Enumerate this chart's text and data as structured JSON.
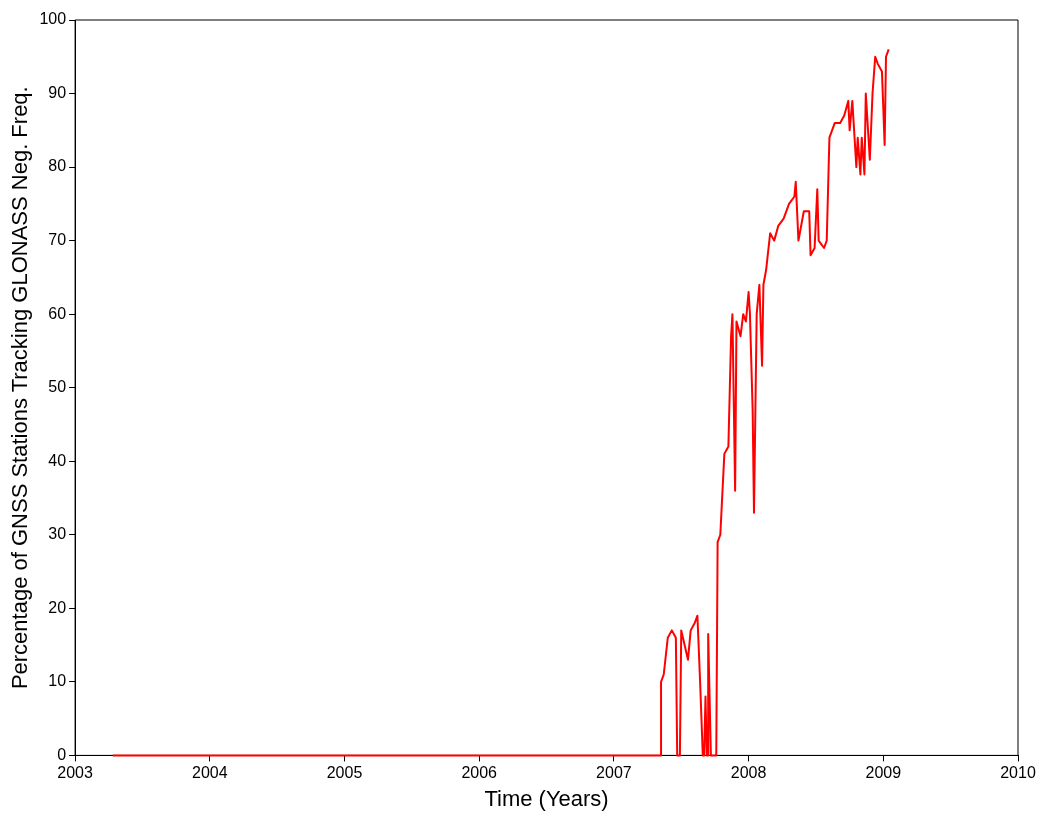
{
  "chart_data": {
    "type": "line",
    "xlabel": "Time (Years)",
    "ylabel": "Percentage of GNSS Stations Tracking GLONASS Neg. Freq.",
    "xlim": [
      2003,
      2010
    ],
    "xticks": [
      2003,
      2004,
      2005,
      2006,
      2007,
      2008,
      2009,
      2010
    ],
    "ylim": [
      0,
      100
    ],
    "yticks": [
      0,
      10,
      20,
      30,
      40,
      50,
      60,
      70,
      80,
      90,
      100
    ],
    "grid": false,
    "legend": false,
    "marker": "none",
    "line_style": "solid",
    "series": [
      {
        "color": "#ff0000",
        "x": [
          2003.28,
          2007.35,
          2007.35,
          2007.37,
          2007.4,
          2007.43,
          2007.46,
          2007.47,
          2007.49,
          2007.5,
          2007.55,
          2007.57,
          2007.6,
          2007.62,
          2007.64,
          2007.66,
          2007.67,
          2007.68,
          2007.69,
          2007.7,
          2007.7,
          2007.72,
          2007.76,
          2007.77,
          2007.79,
          2007.82,
          2007.85,
          2007.87,
          2007.88,
          2007.9,
          2007.91,
          2007.94,
          2007.96,
          2007.98,
          2008.0,
          2008.01,
          2008.03,
          2008.04,
          2008.06,
          2008.08,
          2008.1,
          2008.11,
          2008.13,
          2008.16,
          2008.19,
          2008.22,
          2008.26,
          2008.3,
          2008.34,
          2008.35,
          2008.37,
          2008.41,
          2008.45,
          2008.46,
          2008.49,
          2008.51,
          2008.52,
          2008.56,
          2008.58,
          2008.6,
          2008.64,
          2008.68,
          2008.71,
          2008.74,
          2008.75,
          2008.77,
          2008.8,
          2008.81,
          2008.83,
          2008.84,
          2008.86,
          2008.87,
          2008.9,
          2008.92,
          2008.94,
          2008.96,
          2008.99,
          2009.01,
          2009.02,
          2009.04
        ],
        "values": [
          0,
          0,
          10,
          11,
          16,
          17,
          16,
          0,
          0,
          17,
          13,
          17,
          18,
          19,
          10,
          0,
          0,
          8,
          0,
          0,
          16.5,
          0,
          0,
          29,
          30,
          41,
          42,
          57,
          60,
          36,
          59,
          57,
          60,
          59,
          63,
          60,
          47,
          33,
          60,
          64,
          53,
          64,
          66,
          71,
          70,
          72,
          73,
          75,
          76,
          78,
          70,
          74,
          74,
          68,
          69,
          77,
          70,
          69,
          70,
          84,
          86,
          86,
          87,
          89,
          85,
          89,
          80,
          84,
          79,
          84,
          79,
          90,
          81,
          90,
          95,
          94,
          93,
          83,
          95,
          96
        ]
      }
    ]
  }
}
